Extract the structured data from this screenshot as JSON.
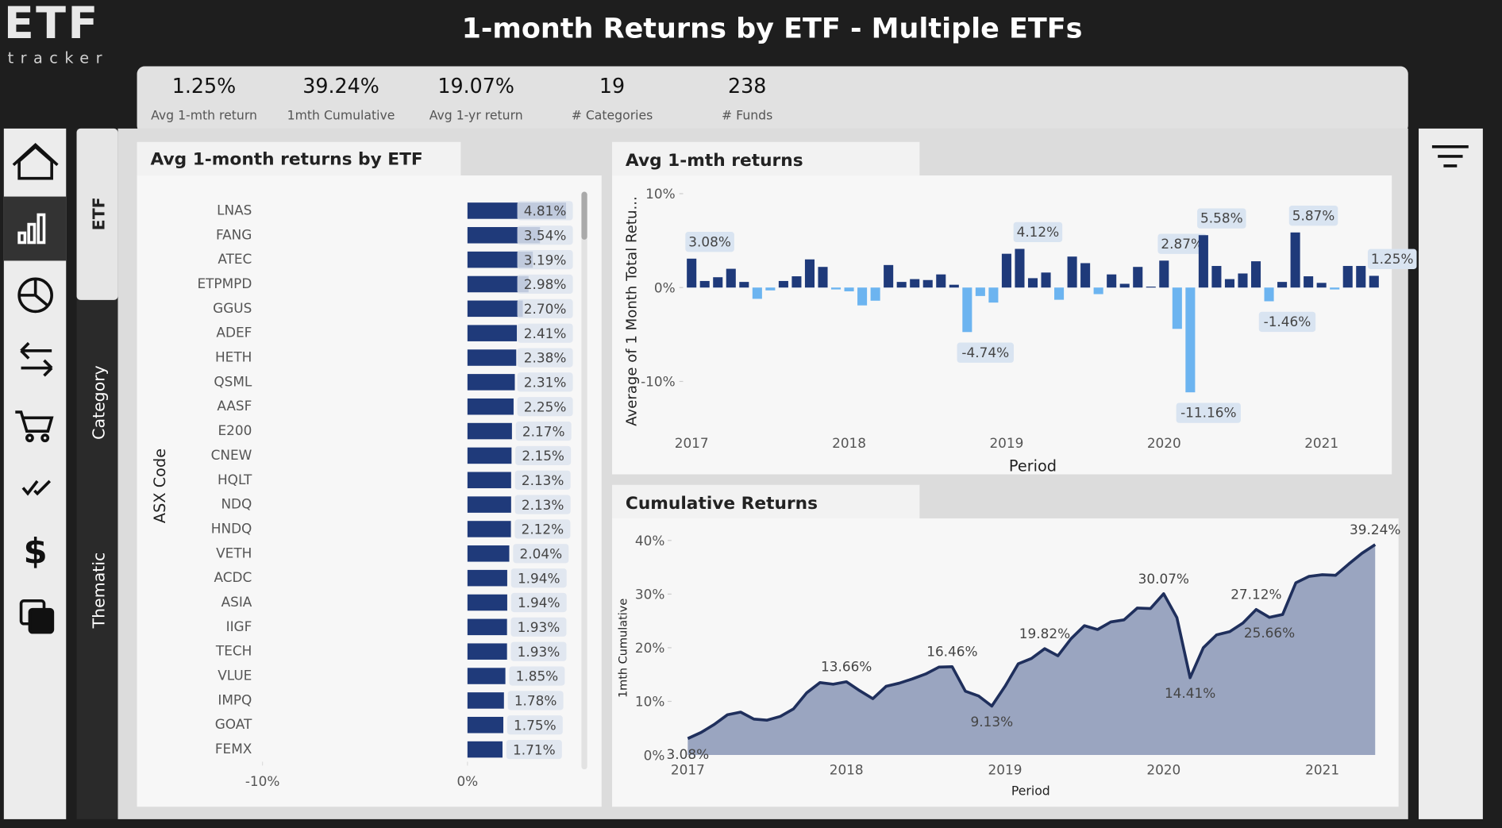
{
  "header": {
    "title": "1-month Returns by ETF - Multiple ETFs",
    "logo": {
      "main": "ETF",
      "sub": "tracker"
    }
  },
  "kpis": [
    {
      "value": "1.25%",
      "label": "Avg 1-mth return"
    },
    {
      "value": "39.24%",
      "label": "1mth Cumulative"
    },
    {
      "value": "19.07%",
      "label": "Avg 1-yr return"
    },
    {
      "value": "19",
      "label": "# Categories"
    },
    {
      "value": "238",
      "label": "# Funds"
    }
  ],
  "tabs": [
    "ETF",
    "Category",
    "Thematic"
  ],
  "chart_data": [
    {
      "type": "hbar",
      "title": "Avg 1-month returns by ETF",
      "y_label": "ASX Code",
      "categories": [
        "LNAS",
        "FANG",
        "ATEC",
        "ETPMPD",
        "GGUS",
        "ADEF",
        "HETH",
        "QSML",
        "AASF",
        "E200",
        "CNEW",
        "HQLT",
        "NDQ",
        "HNDQ",
        "VETH",
        "ACDC",
        "ASIA",
        "IIGF",
        "TECH",
        "VLUE",
        "IMPQ",
        "GOAT",
        "FEMX"
      ],
      "values": [
        4.81,
        3.54,
        3.19,
        2.98,
        2.7,
        2.41,
        2.38,
        2.31,
        2.25,
        2.17,
        2.15,
        2.13,
        2.13,
        2.12,
        2.04,
        1.94,
        1.94,
        1.93,
        1.93,
        1.85,
        1.78,
        1.75,
        1.71
      ],
      "value_labels": [
        "4.81%",
        "3.54%",
        "3.19%",
        "2.98%",
        "2.70%",
        "2.41%",
        "2.38%",
        "2.31%",
        "2.25%",
        "2.17%",
        "2.15%",
        "2.13%",
        "2.13%",
        "2.12%",
        "2.04%",
        "1.94%",
        "1.94%",
        "1.93%",
        "1.93%",
        "1.85%",
        "1.78%",
        "1.75%",
        "1.71%"
      ],
      "color": "#1f3a7a",
      "xlim": [
        -10,
        5
      ],
      "xticks": [
        {
          "value": -10,
          "label": "-10%"
        },
        {
          "value": 0,
          "label": "0%"
        }
      ]
    },
    {
      "type": "bar",
      "title": "Avg 1-mth returns",
      "x_label": "Period",
      "y_label": "Average of 1 Month Total Retu...",
      "categories": [
        "2017",
        null,
        null,
        null,
        null,
        null,
        null,
        null,
        null,
        null,
        null,
        null,
        "2018",
        null,
        null,
        null,
        null,
        null,
        null,
        null,
        null,
        null,
        null,
        null,
        "2019",
        null,
        null,
        null,
        null,
        null,
        null,
        null,
        null,
        null,
        null,
        null,
        "2020",
        null,
        null,
        null,
        null,
        null,
        null,
        null,
        null,
        null,
        null,
        null,
        "2021",
        null,
        null,
        null,
        null
      ],
      "values": [
        3.08,
        0.7,
        1.1,
        2.0,
        0.6,
        -1.2,
        -0.3,
        0.7,
        1.2,
        3.0,
        2.2,
        -0.2,
        -0.4,
        -1.9,
        -1.4,
        2.4,
        0.6,
        0.9,
        0.8,
        1.4,
        0.3,
        -4.74,
        -0.9,
        -1.6,
        3.6,
        4.12,
        1.0,
        1.6,
        -1.3,
        3.3,
        2.6,
        -0.7,
        1.4,
        0.4,
        2.2,
        0.1,
        2.87,
        -4.4,
        -11.16,
        5.58,
        2.3,
        0.9,
        1.5,
        2.8,
        -1.46,
        0.6,
        5.87,
        1.2,
        0.5,
        -0.2,
        2.3,
        2.3,
        1.25
      ],
      "value_labels": [
        "3.08%",
        null,
        null,
        null,
        null,
        null,
        null,
        null,
        null,
        null,
        null,
        null,
        null,
        null,
        null,
        null,
        null,
        null,
        null,
        null,
        null,
        "-4.74%",
        null,
        null,
        null,
        "4.12%",
        null,
        null,
        null,
        null,
        null,
        null,
        null,
        null,
        null,
        null,
        "2.87%",
        null,
        "-11.16%",
        "5.58%",
        null,
        null,
        null,
        null,
        "-1.46%",
        null,
        "5.87%",
        null,
        null,
        null,
        null,
        null,
        "1.25%"
      ],
      "color": "#1f3a7a",
      "negative_color": "#6cb4f0",
      "ylim": [
        -14,
        11
      ],
      "yticks": [
        {
          "value": 10,
          "label": "10%"
        },
        {
          "value": 0,
          "label": "0%"
        },
        {
          "value": -10,
          "label": "-10%"
        }
      ]
    },
    {
      "type": "area",
      "title": "Cumulative Returns",
      "x_label": "Period",
      "y_label": "1mth Cumulative",
      "categories": [
        "2017",
        null,
        null,
        null,
        null,
        null,
        null,
        null,
        null,
        null,
        null,
        null,
        "2018",
        null,
        null,
        null,
        null,
        null,
        null,
        null,
        null,
        null,
        null,
        null,
        "2019",
        null,
        null,
        null,
        null,
        null,
        null,
        null,
        null,
        null,
        null,
        null,
        "2020",
        null,
        null,
        null,
        null,
        null,
        null,
        null,
        null,
        null,
        null,
        null,
        "2021",
        null,
        null,
        null,
        null
      ],
      "values": [
        3.08,
        4.2,
        5.7,
        7.5,
        8.0,
        6.7,
        6.5,
        7.2,
        8.6,
        11.6,
        13.5,
        13.2,
        13.66,
        12.0,
        10.5,
        12.8,
        13.4,
        14.2,
        15.1,
        16.4,
        16.46,
        11.9,
        11.0,
        9.13,
        12.8,
        17.0,
        18.0,
        19.82,
        18.5,
        21.7,
        24.1,
        23.4,
        24.8,
        25.2,
        27.4,
        27.3,
        30.07,
        25.6,
        14.41,
        20.0,
        22.4,
        23.0,
        24.6,
        27.12,
        25.66,
        26.2,
        32.1,
        33.3,
        33.6,
        33.5,
        35.6,
        37.6,
        39.24
      ],
      "value_labels": [
        "3.08%",
        null,
        null,
        null,
        null,
        null,
        null,
        null,
        null,
        null,
        null,
        null,
        "13.66%",
        null,
        null,
        null,
        null,
        null,
        null,
        null,
        "16.46%",
        null,
        null,
        "9.13%",
        null,
        null,
        null,
        "19.82%",
        null,
        null,
        null,
        null,
        null,
        null,
        null,
        null,
        "30.07%",
        null,
        "14.41%",
        null,
        null,
        null,
        null,
        "27.12%",
        "25.66%",
        null,
        null,
        null,
        null,
        null,
        null,
        null,
        "39.24%"
      ],
      "color": "#1f2f5c",
      "fill": "#9aa5c0",
      "ylim": [
        0,
        42
      ],
      "yticks": [
        {
          "value": 0,
          "label": "0%"
        },
        {
          "value": 10,
          "label": "10%"
        },
        {
          "value": 20,
          "label": "20%"
        },
        {
          "value": 30,
          "label": "30%"
        },
        {
          "value": 40,
          "label": "40%"
        }
      ]
    }
  ]
}
